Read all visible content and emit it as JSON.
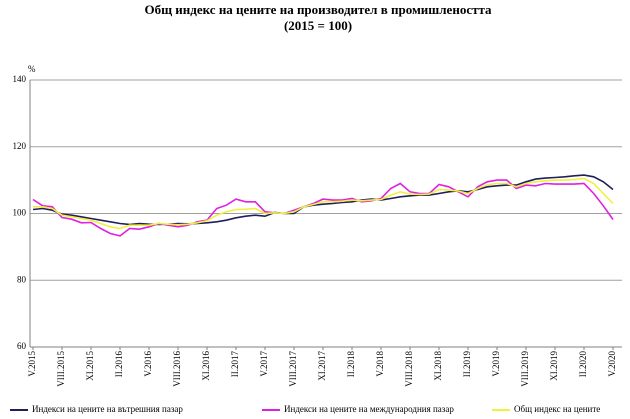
{
  "chart_data": {
    "type": "line",
    "title": "Общ индекс на цените на производител в промишлеността",
    "subtitle": "(2015 = 100)",
    "y_label": "%",
    "categories": [
      "V.2015",
      null,
      null,
      "VIII.2015",
      null,
      null,
      "XI.2015",
      null,
      null,
      "II.2016",
      null,
      null,
      "V.2016",
      null,
      null,
      "VIII.2016",
      null,
      null,
      "XI.2016",
      null,
      null,
      "II.2017",
      null,
      null,
      "V.2017",
      null,
      null,
      "VIII.2017",
      null,
      null,
      "XI.2017",
      null,
      null,
      "II.2018",
      null,
      null,
      "V.2018",
      null,
      null,
      "VIII.2018",
      null,
      null,
      "XI.2018",
      null,
      null,
      "II.2019",
      null,
      null,
      "V.2019",
      null,
      null,
      "VIII.2019",
      null,
      null,
      "XI.2019",
      null,
      null,
      "II.2020",
      null,
      null,
      "V.2020"
    ],
    "series": [
      {
        "name": "Индекси на цените на вътрешния пазар",
        "color": "#1f1f5c",
        "values": [
          101.2,
          101.5,
          101,
          99.8,
          99.5,
          99,
          98.5,
          98,
          97.5,
          97,
          96.7,
          97,
          96.8,
          96.7,
          96.8,
          97,
          96.9,
          97,
          97.2,
          97.5,
          98,
          98.7,
          99.2,
          99.5,
          99.2,
          100.3,
          100,
          100,
          102,
          102.5,
          102.8,
          103,
          103.3,
          103.5,
          104,
          104.3,
          104,
          104.5,
          105,
          105.3,
          105.5,
          105.5,
          106,
          106.5,
          106.8,
          106.5,
          107.2,
          108,
          108.3,
          108.5,
          108.5,
          109.5,
          110.3,
          110.6,
          110.8,
          111,
          111.3,
          111.5,
          111,
          109.5,
          107.2
        ]
      },
      {
        "name": "Индекси на цените на международния пазар",
        "color": "#e020e0",
        "values": [
          104.2,
          102.3,
          102,
          98.8,
          98.3,
          97.2,
          97.3,
          95.5,
          94,
          93.3,
          95.5,
          95.3,
          96,
          97,
          96.5,
          96,
          96.5,
          97.5,
          98,
          101.5,
          102.5,
          104.3,
          103.5,
          103.5,
          100.5,
          100.2,
          100,
          101,
          102,
          103,
          104.3,
          104,
          104,
          104.5,
          103.5,
          103.8,
          104.5,
          107.5,
          109,
          106.5,
          106,
          106,
          108.7,
          108,
          106.5,
          105,
          108,
          109.5,
          110,
          110,
          107.5,
          108.5,
          108.3,
          109,
          108.8,
          108.8,
          108.8,
          109,
          106,
          102.3,
          98.2
        ]
      },
      {
        "name": "Общ индекс на цените",
        "color": "#f0f040",
        "values": [
          102,
          102,
          101.5,
          99.5,
          99,
          98.5,
          98,
          97,
          96,
          95.5,
          96.5,
          96.5,
          96.5,
          97,
          96.8,
          96.6,
          96.8,
          97.2,
          97.8,
          99.5,
          100.5,
          101.2,
          101.3,
          101.5,
          100,
          100.2,
          100,
          100.5,
          102,
          102.7,
          103.5,
          103.5,
          103.7,
          104,
          103.8,
          104,
          104.2,
          105.5,
          106.5,
          105.8,
          105.7,
          105.8,
          107.2,
          107,
          106.7,
          106,
          107.5,
          108.6,
          109,
          109,
          108,
          109,
          109.5,
          109.8,
          110,
          110,
          110.2,
          110.5,
          109,
          106,
          103
        ]
      }
    ],
    "ylim": [
      60,
      140
    ],
    "yticks": [
      60,
      80,
      100,
      120,
      140
    ],
    "grid": true
  }
}
